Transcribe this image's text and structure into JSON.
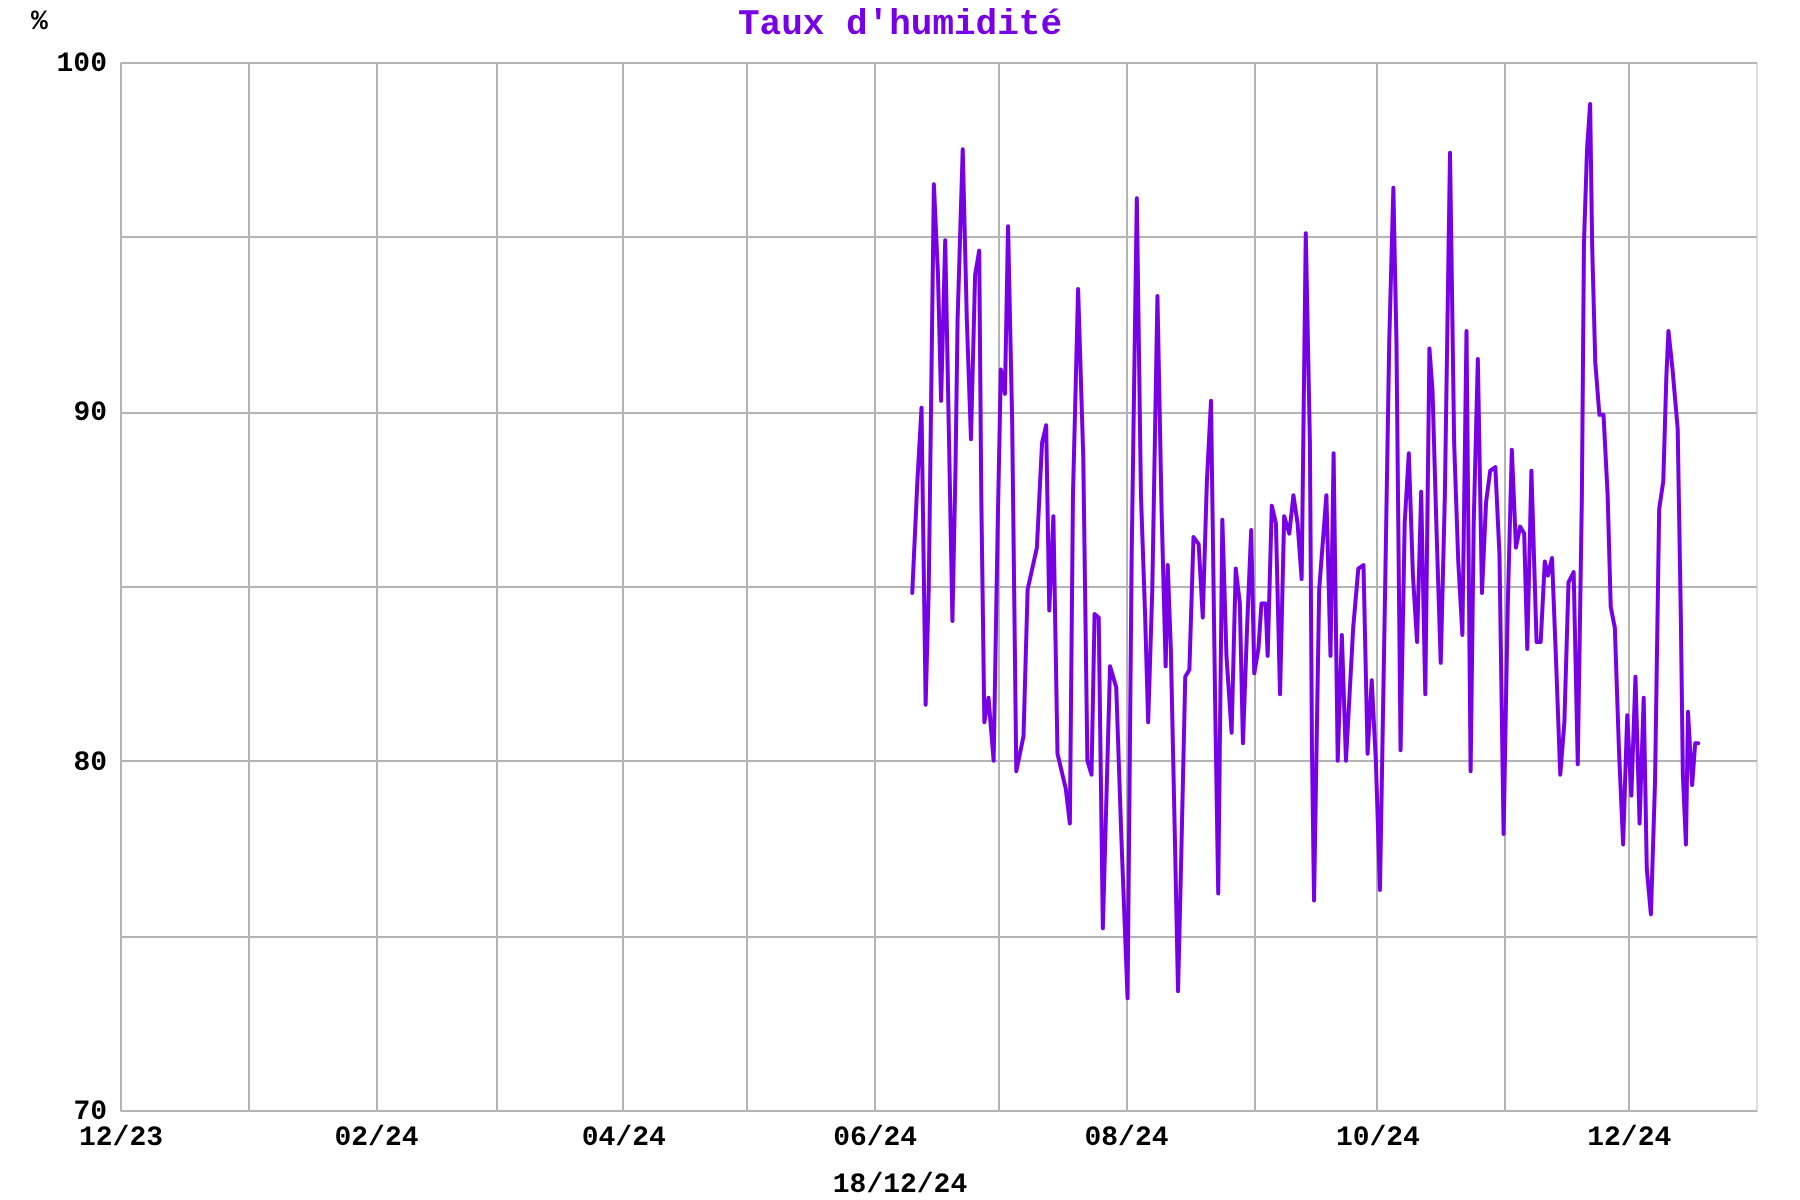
{
  "chart_data": {
    "type": "line",
    "title": "Taux d'humidité",
    "ylabel": "%",
    "annotations": [
      "18/12/24"
    ],
    "x": [
      "2024-06-10T06:00",
      "2024-06-11T12:00",
      "2024-06-12T12:00",
      "2024-06-13T12:00",
      "2024-06-14T06:00",
      "2024-06-15T12:00",
      "2024-06-16T12:00",
      "2024-06-17T06:00",
      "2024-06-18T06:00",
      "2024-06-19T06:00",
      "2024-06-20T00:00",
      "2024-06-20T18:00",
      "2024-06-21T06:00",
      "2024-06-22T12:00",
      "2024-06-23T12:00",
      "2024-06-24T12:00",
      "2024-06-25T12:00",
      "2024-06-26T12:00",
      "2024-06-27T00:00",
      "2024-06-27T18:00",
      "2024-06-28T18:00",
      "2024-06-30T00:00",
      "2024-07-01T00:00",
      "2024-07-01T18:00",
      "2024-07-02T18:00",
      "2024-07-03T12:00",
      "2024-07-04T12:00",
      "2024-07-05T12:00",
      "2024-07-07T06:00",
      "2024-07-08T06:00",
      "2024-07-10T12:00",
      "2024-07-11T18:00",
      "2024-07-12T18:00",
      "2024-07-13T12:00",
      "2024-07-14T12:00",
      "2024-07-15T12:00",
      "2024-07-17T12:00",
      "2024-07-18T12:00",
      "2024-07-19T06:00",
      "2024-07-20T12:00",
      "2024-07-21T18:00",
      "2024-07-22T18:00",
      "2024-07-23T18:00",
      "2024-07-24T12:00",
      "2024-07-25T12:00",
      "2024-07-26T12:00",
      "2024-07-28T06:00",
      "2024-07-29T18:00",
      "2024-07-31T00:00",
      "2024-08-01T12:00",
      "2024-08-02T12:00",
      "2024-08-03T18:00",
      "2024-08-04T18:00",
      "2024-08-05T18:00",
      "2024-08-06T12:00",
      "2024-08-07T12:00",
      "2024-08-08T18:00",
      "2024-08-09T18:00",
      "2024-08-10T18:00",
      "2024-08-11T06:00",
      "2024-08-12T00:00",
      "2024-08-13T00:00",
      "2024-08-13T18:00",
      "2024-08-14T12:00",
      "2024-08-15T12:00",
      "2024-08-16T12:00",
      "2024-08-17T12:00",
      "2024-08-18T18:00",
      "2024-08-19T18:00",
      "2024-08-20T18:00",
      "2024-08-21T18:00",
      "2024-08-22T18:00",
      "2024-08-23T12:00",
      "2024-08-24T12:00",
      "2024-08-25T12:00",
      "2024-08-26T18:00",
      "2024-08-27T18:00",
      "2024-08-28T18:00",
      "2024-08-29T12:00",
      "2024-08-30T12:00",
      "2024-08-31T12:00",
      "2024-09-01T06:00",
      "2024-09-02T06:00",
      "2024-09-03T00:00",
      "2024-09-04T00:00",
      "2024-09-04T12:00",
      "2024-09-05T12:00",
      "2024-09-06T12:00",
      "2024-09-07T12:00",
      "2024-09-08T12:00",
      "2024-09-09T18:00",
      "2024-09-10T18:00",
      "2024-09-11T18:00",
      "2024-09-12T18:00",
      "2024-09-13T18:00",
      "2024-09-14T18:00",
      "2024-09-15T06:00",
      "2024-09-15T18:00",
      "2024-09-17T00:00",
      "2024-09-18T18:00",
      "2024-09-19T18:00",
      "2024-09-20T12:00",
      "2024-09-21T12:00",
      "2024-09-22T12:00",
      "2024-09-23T12:00",
      "2024-09-25T06:00",
      "2024-09-26T12:00",
      "2024-09-27T18:00",
      "2024-09-28T18:00",
      "2024-09-29T18:00",
      "2024-09-30T18:00",
      "2024-10-01T18:00",
      "2024-10-03T00:00",
      "2024-10-04T00:00",
      "2024-10-05T00:00",
      "2024-10-05T18:00",
      "2024-10-06T18:00",
      "2024-10-07T18:00",
      "2024-10-08T18:00",
      "2024-10-09T18:00",
      "2024-10-10T18:00",
      "2024-10-11T18:00",
      "2024-10-12T18:00",
      "2024-10-13T18:00",
      "2024-10-14T12:00",
      "2024-10-15T12:00",
      "2024-10-16T12:00",
      "2024-10-17T12:00",
      "2024-10-18T18:00",
      "2024-10-19T18:00",
      "2024-10-20T18:00",
      "2024-10-21T18:00",
      "2024-10-22T18:00",
      "2024-10-23T18:00",
      "2024-10-24T12:00",
      "2024-10-25T12:00",
      "2024-10-26T12:00",
      "2024-10-27T12:00",
      "2024-10-28T12:00",
      "2024-10-29T18:00",
      "2024-10-30T18:00",
      "2024-10-31T18:00",
      "2024-11-01T18:00",
      "2024-11-02T18:00",
      "2024-11-03T18:00",
      "2024-11-04T18:00",
      "2024-11-05T18:00",
      "2024-11-06T12:00",
      "2024-11-07T12:00",
      "2024-11-08T18:00",
      "2024-11-09T18:00",
      "2024-11-10T18:00",
      "2024-11-11T12:00",
      "2024-11-12T12:00",
      "2024-11-13T12:00",
      "2024-11-14T12:00",
      "2024-11-15T12:00",
      "2024-11-16T12:00",
      "2024-11-17T18:00",
      "2024-11-18T18:00",
      "2024-11-19T18:00",
      "2024-11-20T06:00",
      "2024-11-21T00:00",
      "2024-11-21T18:00",
      "2024-11-22T06:00",
      "2024-11-23T00:00",
      "2024-11-24T00:00",
      "2024-11-25T00:00",
      "2024-11-26T00:00",
      "2024-11-26T18:00",
      "2024-11-27T18:00",
      "2024-11-28T18:00",
      "2024-11-29T18:00",
      "2024-11-30T18:00",
      "2024-12-01T18:00",
      "2024-12-02T18:00",
      "2024-12-03T18:00",
      "2024-12-04T18:00",
      "2024-12-05T12:00",
      "2024-12-06T12:00",
      "2024-12-07T12:00",
      "2024-12-08T12:00",
      "2024-12-09T12:00",
      "2024-12-10T06:00",
      "2024-12-10T18:00",
      "2024-12-11T18:00",
      "2024-12-13T00:00",
      "2024-12-13T18:00",
      "2024-12-14T06:00",
      "2024-12-15T00:00",
      "2024-12-15T12:00",
      "2024-12-16T12:00",
      "2024-12-17T06:00",
      "2024-12-18T00:00"
    ],
    "values": [
      84.8,
      88.0,
      90.1,
      81.6,
      84.9,
      96.5,
      93.9,
      90.3,
      94.9,
      88.7,
      84.0,
      88.4,
      92.6,
      97.5,
      92.6,
      89.2,
      93.9,
      94.6,
      87.6,
      81.1,
      81.8,
      80.0,
      86.8,
      91.2,
      90.5,
      95.3,
      89.7,
      79.7,
      80.7,
      84.9,
      86.1,
      89.1,
      89.6,
      84.3,
      87.0,
      80.2,
      79.2,
      78.2,
      87.6,
      93.5,
      88.7,
      80.0,
      79.6,
      84.2,
      84.1,
      75.2,
      82.7,
      82.1,
      77.8,
      73.2,
      85.9,
      96.1,
      87.6,
      84.2,
      81.1,
      84.9,
      93.3,
      87.2,
      82.7,
      85.6,
      83.2,
      77.7,
      73.4,
      77.1,
      82.4,
      82.6,
      86.4,
      86.2,
      84.1,
      88.0,
      90.3,
      81.7,
      76.2,
      86.9,
      83.0,
      80.8,
      85.5,
      84.5,
      80.5,
      83.8,
      86.6,
      82.5,
      83.2,
      84.5,
      84.5,
      83.0,
      87.3,
      86.8,
      81.9,
      87.0,
      86.5,
      87.6,
      86.8,
      85.2,
      95.1,
      89.1,
      80.3,
      76.0,
      84.9,
      87.6,
      83.0,
      88.8,
      80.0,
      83.6,
      80.0,
      83.8,
      85.5,
      85.6,
      80.2,
      82.3,
      80.0,
      76.3,
      84.9,
      92.0,
      96.4,
      92.0,
      80.3,
      86.8,
      88.8,
      85.3,
      83.4,
      87.7,
      81.9,
      91.8,
      90.6,
      86.5,
      82.8,
      87.6,
      97.4,
      89.1,
      85.7,
      83.6,
      92.3,
      79.7,
      86.8,
      91.5,
      84.8,
      87.4,
      88.3,
      88.4,
      85.9,
      77.9,
      84.4,
      88.9,
      86.1,
      86.7,
      86.5,
      83.2,
      88.3,
      83.4,
      83.4,
      85.7,
      85.3,
      85.8,
      82.8,
      79.6,
      81.1,
      85.1,
      85.4,
      79.9,
      87.6,
      94.8,
      97.5,
      98.8,
      94.7,
      91.4,
      89.9,
      89.9,
      87.6,
      84.4,
      83.8,
      80.3,
      77.6,
      81.3,
      79.0,
      82.4,
      78.2,
      81.8,
      76.9,
      75.6,
      79.4,
      87.2,
      88.0,
      91.0,
      92.3,
      91.2,
      89.5,
      84.2,
      79.6,
      77.6,
      81.4,
      79.3,
      80.5,
      80.5
    ],
    "color": "#7800e6",
    "xlim": [
      "2023-12-01",
      "2025-01-01"
    ],
    "xticks": [
      {
        "value": "2023-12-01",
        "label": "12/23"
      },
      {
        "value": "2024-01-01",
        "label": null
      },
      {
        "value": "2024-02-01",
        "label": "02/24"
      },
      {
        "value": "2024-03-01",
        "label": null
      },
      {
        "value": "2024-04-01",
        "label": "04/24"
      },
      {
        "value": "2024-05-01",
        "label": null
      },
      {
        "value": "2024-06-01",
        "label": "06/24"
      },
      {
        "value": "2024-07-01",
        "label": null
      },
      {
        "value": "2024-08-01",
        "label": "08/24"
      },
      {
        "value": "2024-09-01",
        "label": null
      },
      {
        "value": "2024-10-01",
        "label": "10/24"
      },
      {
        "value": "2024-11-01",
        "label": null
      },
      {
        "value": "2024-12-01",
        "label": "12/24"
      }
    ],
    "ylim": [
      70,
      100
    ],
    "yticks": [
      70,
      {
        "value": 75,
        "label": null
      },
      80,
      {
        "value": 85,
        "label": null
      },
      90,
      {
        "value": 95,
        "label": null
      },
      100
    ],
    "grid": true,
    "line_style": "solid"
  }
}
